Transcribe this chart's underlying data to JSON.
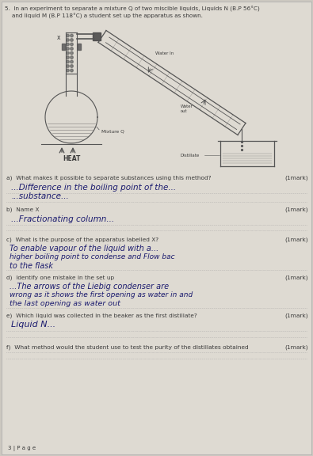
{
  "background_color": "#ccc8c0",
  "page_bg": "#dedad2",
  "title_line1": "5.  In an experiment to separate a mixture Q of two miscible liquids, Liquids N (B.P 56°C)",
  "title_line2": "    and liquid M (B.P 118°C) a student set up the apparatus as shown.",
  "question_a": "a)  What makes it possible to separate substances using this method?",
  "mark_a": "(1mark)",
  "answer_a1": "...Difference in the boiling point of the...",
  "answer_a2": "...substance...",
  "question_b": "b)  Name X",
  "mark_b": "(1mark)",
  "answer_b1": "...Fractionating column...",
  "question_c": "c)  What is the purpose of the apparatus labelled X?",
  "mark_c": "(1mark)",
  "answer_c1": "To enable vapour of the liquid with a...",
  "answer_c2": "higher boiling point to condense and Flow bac",
  "answer_c3": "to the flask",
  "question_d": "d)  Identify one mistake in the set up",
  "mark_d": "(1mark)",
  "answer_d1": "...The arrows of the Liebig condenser are",
  "answer_d2": "wrong as it shows the first opening as water in and",
  "answer_d3": "the last opening as water out",
  "question_e": "e)  Which liquid was collected in the beaker as the first distillate?",
  "mark_e": "(1mark)",
  "answer_e1": "Liquid N...",
  "question_f": "f)  What method would the student use to test the purity of the distillates obtained",
  "mark_f": "(1mark)",
  "footer": "3 | P a g e",
  "printed_color": "#3a3a3a",
  "handwritten_color": "#1a1a6e",
  "dotted_line_color": "#999999",
  "diagram_color": "#555555"
}
